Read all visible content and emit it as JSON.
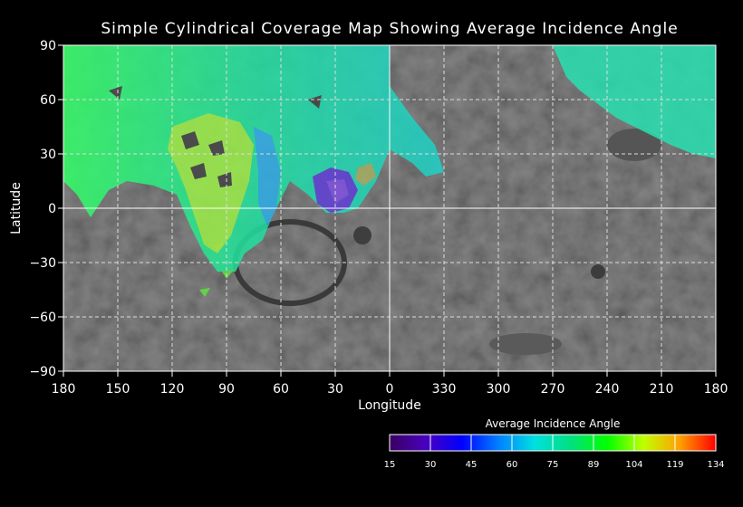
{
  "title": "Simple Cylindrical Coverage Map Showing Average Incidence Angle",
  "axes": {
    "xlabel": "Longitude",
    "ylabel": "Latitude",
    "x_ticks": [
      "180",
      "150",
      "120",
      "90",
      "60",
      "30",
      "0",
      "330",
      "300",
      "270",
      "240",
      "210",
      "180"
    ],
    "y_ticks": [
      "90",
      "60",
      "30",
      "0",
      "−30",
      "−60",
      "−90"
    ],
    "grid": "dashed"
  },
  "legend": {
    "title": "Average Incidence Angle",
    "ticks": [
      "15",
      "30",
      "45",
      "60",
      "75",
      "89",
      "104",
      "119",
      "134"
    ],
    "colors": [
      "#3a0060",
      "#4a00c0",
      "#0000ff",
      "#0080ff",
      "#00e0e0",
      "#00e080",
      "#00ff00",
      "#c0ff00",
      "#ffa000",
      "#ff0000"
    ]
  },
  "colors": {
    "background": "#000000",
    "basemap": "#4a4a4a",
    "grid": "#ffffff"
  }
}
